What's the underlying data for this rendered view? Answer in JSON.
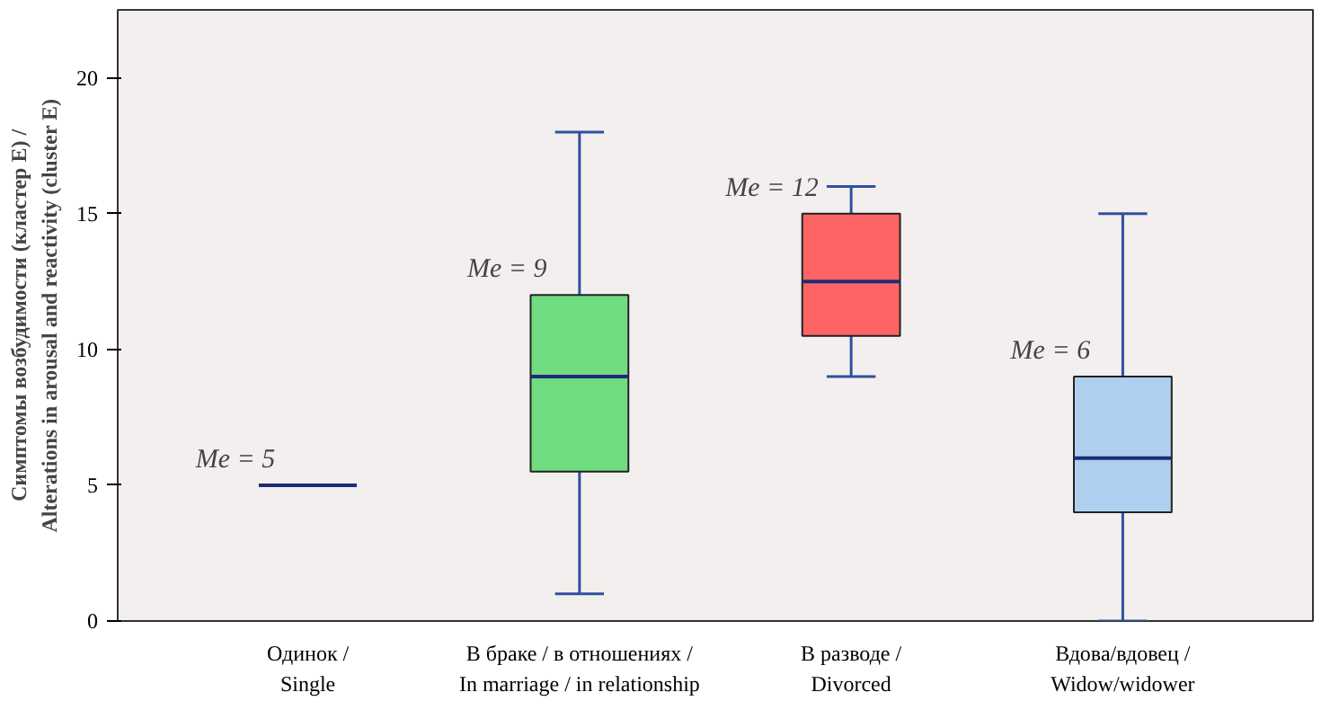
{
  "chart_data": {
    "type": "box",
    "ylabel": "Симптомы возбудимости (кластер Е) /\nAlterations in arousal and reactivity (cluster E)",
    "categories": [
      "Одинок /\nSingle",
      "В браке / в отношениях /\nIn marriage / in relationship",
      "В разводе /\nDivorced",
      "Вдова/вдовец /\nWidow/widower"
    ],
    "colors": [
      "#1f2a7a",
      "#6fdc80",
      "#ff6464",
      "#aed0ee"
    ],
    "boxes": [
      {
        "low": 5,
        "q1": 5,
        "median": 5,
        "q3": 5,
        "high": 5
      },
      {
        "low": 1,
        "q1": 5.5,
        "median": 9,
        "q3": 12,
        "high": 18
      },
      {
        "low": 9,
        "q1": 10.5,
        "median": 12.5,
        "q3": 15,
        "high": 16
      },
      {
        "low": 0,
        "q1": 4,
        "median": 6,
        "q3": 9,
        "high": 15
      }
    ],
    "ylim": [
      0,
      22.5
    ],
    "yticks": [
      0,
      5,
      10,
      15,
      20
    ],
    "grid": false,
    "annotations": [
      "Me = 5",
      "Me = 9",
      "Me = 12",
      "Me = 6"
    ]
  }
}
